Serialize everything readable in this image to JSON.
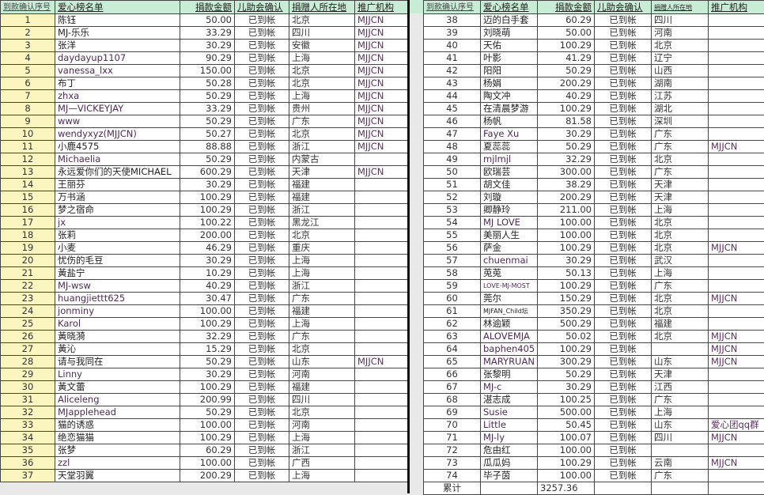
{
  "headers": [
    "到款确认序号",
    "爱心榜名单",
    "捐款金额",
    "儿助会确认",
    "捐赠人所在地",
    "推广机构"
  ],
  "left_rows": [
    [
      "1",
      "陈钰",
      "50.00",
      "已到帐",
      "北京",
      "MJJCN"
    ],
    [
      "2",
      "MJ-乐乐",
      "33.29",
      "已到帐",
      "四川",
      "MJJCN"
    ],
    [
      "3",
      "张洋",
      "30.29",
      "已到帐",
      "安徽",
      "MJJCN"
    ],
    [
      "4",
      "daydayup1107",
      "90.29",
      "已到帐",
      "上海",
      "MJJCN"
    ],
    [
      "5",
      "vanessa_lxx",
      "150.00",
      "已到帐",
      "北京",
      "MJJCN"
    ],
    [
      "6",
      "布丁",
      "50.28",
      "已到帐",
      "北京",
      "MJJCN"
    ],
    [
      "7",
      "zhxa",
      "50.29",
      "已到帐",
      "上海",
      "MJJCN"
    ],
    [
      "8",
      "MJ—VICKEYJAY",
      "33.29",
      "已到帐",
      "贵州",
      "MJJCN"
    ],
    [
      "9",
      "www",
      "50.29",
      "已到帐",
      "广东",
      "MJJCN"
    ],
    [
      "10",
      "wendyxyz(MJJCN)",
      "50.27",
      "已到帐",
      "北京",
      "MJJCN"
    ],
    [
      "11",
      "小鹿4575",
      "88.88",
      "已到帐",
      "浙江",
      "MJJCN"
    ],
    [
      "12",
      "Michaelia",
      "50.29",
      "已到帐",
      "内蒙古",
      ""
    ],
    [
      "13",
      "永远爱你们的天使MICHAEL",
      "600.29",
      "已到帐",
      "天津",
      "MJJCN"
    ],
    [
      "14",
      "王丽芬",
      "30.29",
      "已到帐",
      "福建",
      ""
    ],
    [
      "15",
      "万书涵",
      "100.29",
      "已到帐",
      "福建",
      ""
    ],
    [
      "16",
      "梦之宿命",
      "100.29",
      "已到帐",
      "浙江",
      ""
    ],
    [
      "17",
      "jx",
      "100.22",
      "已到帐",
      "黑龙江",
      ""
    ],
    [
      "18",
      "张莉",
      "200.00",
      "已到帐",
      "北京",
      ""
    ],
    [
      "19",
      "小麦",
      "46.29",
      "已到帐",
      "重庆",
      ""
    ],
    [
      "20",
      "忧伤的毛豆",
      "30.29",
      "已到帐",
      "上海",
      ""
    ],
    [
      "21",
      "黃盐宁",
      "10.29",
      "已到帐",
      "上海",
      ""
    ],
    [
      "22",
      "MJ-wsw",
      "40.29",
      "已到帐",
      "浙江",
      ""
    ],
    [
      "23",
      "huangjiettt625",
      "30.47",
      "已到帐",
      "广东",
      ""
    ],
    [
      "24",
      "jonminy",
      "100.00",
      "已到帐",
      "福建",
      ""
    ],
    [
      "25",
      "Karol",
      "100.29",
      "已到帐",
      "上海",
      ""
    ],
    [
      "26",
      "黃晓漪",
      "32.29",
      "已到帐",
      "广东",
      ""
    ],
    [
      "27",
      "黃沁",
      "15.29",
      "已到帐",
      "北京",
      ""
    ],
    [
      "28",
      "请与我同在",
      "50.29",
      "已到帐",
      "山东",
      "MJJCN"
    ],
    [
      "29",
      "Linny",
      "30.29",
      "已到帐",
      "河南",
      ""
    ],
    [
      "30",
      "黃文蕾",
      "100.29",
      "已到帐",
      "福建",
      ""
    ],
    [
      "31",
      "Aliceleng",
      "200.99",
      "已到帐",
      "四川",
      ""
    ],
    [
      "32",
      "MJapplehead",
      "50.29",
      "已到帐",
      "北京",
      ""
    ],
    [
      "33",
      "猫的诱惑",
      "100.00",
      "已到帐",
      "河南",
      ""
    ],
    [
      "34",
      "绝恋猫猫",
      "100.29",
      "已到帐",
      "上海",
      ""
    ],
    [
      "35",
      "张梦",
      "60.29",
      "已到帐",
      "浙江",
      ""
    ],
    [
      "36",
      "zzl",
      "100.00",
      "已到帐",
      "广西",
      ""
    ],
    [
      "37",
      "天堂羽翼",
      "200.29",
      "已到帐",
      "上海",
      ""
    ]
  ],
  "right_rows": [
    [
      "38",
      "迈的白手套",
      "60.29",
      "已到帐",
      "四川",
      ""
    ],
    [
      "39",
      "刘晓萌",
      "50.00",
      "已到帐",
      "河南",
      ""
    ],
    [
      "40",
      "天佑",
      "100.29",
      "已到帐",
      "北京",
      ""
    ],
    [
      "41",
      "叶影",
      "41.29",
      "已到帐",
      "辽宁",
      ""
    ],
    [
      "42",
      "阳阳",
      "50.29",
      "已到帐",
      "山西",
      ""
    ],
    [
      "43",
      "杨娟",
      "200.29",
      "已到帐",
      "湖南",
      ""
    ],
    [
      "44",
      "陶文冲",
      "40.29",
      "已到帐",
      "江苏",
      ""
    ],
    [
      "45",
      "在清晨梦游",
      "100.29",
      "已到帐",
      "湖北",
      ""
    ],
    [
      "46",
      "杨帆",
      "81.58",
      "已到帐",
      "深圳",
      ""
    ],
    [
      "47",
      "Faye Xu",
      "30.29",
      "已到帐",
      "广东",
      ""
    ],
    [
      "48",
      "夏蕊蕊",
      "50.29",
      "已到帐",
      "广东",
      "MJJCN"
    ],
    [
      "49",
      "mjlmjl",
      "32.29",
      "已到帐",
      "北京",
      ""
    ],
    [
      "50",
      "欧瑞芸",
      "300.00",
      "已到帐",
      "广东",
      ""
    ],
    [
      "51",
      "胡文佳",
      "38.29",
      "已到帐",
      "天津",
      ""
    ],
    [
      "52",
      "刘璇",
      "200.29",
      "已到帐",
      "天津",
      ""
    ],
    [
      "53",
      "卿静玲",
      "211.00",
      "已到帐",
      "上海",
      ""
    ],
    [
      "54",
      "MJ LOVE",
      "100.00",
      "已到帐",
      "北京",
      ""
    ],
    [
      "55",
      "美丽人生",
      "100.00",
      "已到帐",
      "北京",
      ""
    ],
    [
      "56",
      "萨金",
      "100.29",
      "已到帐",
      "北京",
      "MJJCN"
    ],
    [
      "57",
      "chuenmai",
      "30.29",
      "已到帐",
      "武汉",
      ""
    ],
    [
      "58",
      "莵莵",
      "50.13",
      "已到帐",
      "上海",
      ""
    ],
    [
      "59",
      "LOVE-MJ-MOST",
      "100.29",
      "已到帐",
      "广东",
      ""
    ],
    [
      "60",
      "莞尔",
      "150.29",
      "已到帐",
      "北京",
      "MJJCN"
    ],
    [
      "61",
      "MJFAN_Child坛",
      "350.29",
      "已到帐",
      "北京",
      ""
    ],
    [
      "62",
      "林逾颖",
      "500.29",
      "已到帐",
      "福建",
      ""
    ],
    [
      "63",
      "ALOVEMJA",
      "50.02",
      "已到帐",
      "北京",
      "MJJCN"
    ],
    [
      "64",
      "baphen405",
      "100.29",
      "已到帐",
      "",
      "MJJCN"
    ],
    [
      "65",
      "MARYRUAN",
      "300.29",
      "已到帐",
      "山东",
      "MJJCN"
    ],
    [
      "66",
      "张黎明",
      "50.29",
      "已到帐",
      "天津",
      ""
    ],
    [
      "67",
      "MJ-c",
      "30.29",
      "已到帐",
      "江西",
      ""
    ],
    [
      "68",
      "湛志成",
      "100.25",
      "已到帐",
      "广东",
      ""
    ],
    [
      "69",
      "Susie",
      "500.00",
      "已到帐",
      "上海",
      ""
    ],
    [
      "70",
      "Little",
      "50.45",
      "已到帐",
      "山东",
      "爱心团qq群"
    ],
    [
      "71",
      "MJ-ly",
      "100.07",
      "已到帐",
      "四川",
      "MJJCN"
    ],
    [
      "72",
      "危由红",
      "100.00",
      "已到帐",
      "",
      ""
    ],
    [
      "73",
      "瓜瓜妈",
      "100.29",
      "已到帐",
      "云南",
      "MJJCN"
    ],
    [
      "74",
      "毕子茵",
      "100.00",
      "已到帐",
      "广东",
      ""
    ]
  ],
  "total": {
    "label": "累计",
    "value": "3257.36"
  },
  "colors": {
    "header_bg": "#c9ecd6",
    "seq_bg": "#fbf6c0"
  }
}
